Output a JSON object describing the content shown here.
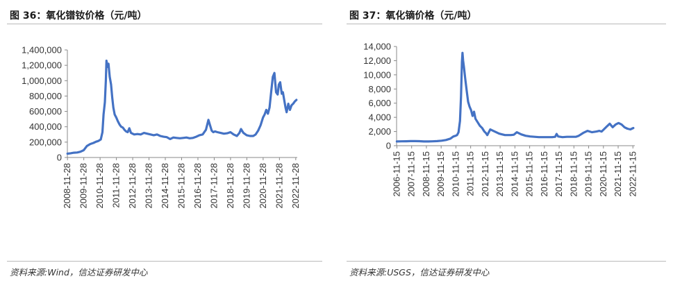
{
  "figures": [
    {
      "title": "图 36：氧化镨钕价格（元/吨）",
      "source": "资料来源:Wind，信达证券研发中心"
    },
    {
      "title": "图 37：氧化镝价格（元/吨）",
      "source": "资料来源:USGS，信达证券研发中心"
    }
  ],
  "chart_data": [
    {
      "type": "line",
      "title": "",
      "xlabel": "",
      "ylabel": "",
      "ylim": [
        0,
        1400000
      ],
      "yticks": [
        0,
        200000,
        400000,
        600000,
        800000,
        1000000,
        1200000,
        1400000
      ],
      "ytick_labels": [
        "0",
        "200,000",
        "400,000",
        "600,000",
        "800,000",
        "1,000,000",
        "1,200,000",
        "1,400,000"
      ],
      "xticks": [
        "2008-11-28",
        "2009-11-28",
        "2010-11-28",
        "2011-11-28",
        "2012-11-28",
        "2013-11-28",
        "2014-11-28",
        "2015-11-28",
        "2016-11-28",
        "2017-11-28",
        "2018-11-28",
        "2019-11-28",
        "2020-11-28",
        "2021-11-28",
        "2022-11-28"
      ],
      "xlim": [
        2008.9,
        2023.0
      ],
      "color": "#4472C4",
      "grid": false,
      "legend": "none",
      "series": [
        {
          "x": [
            2008.91,
            2009.1,
            2009.3,
            2009.5,
            2009.7,
            2009.9,
            2010.1,
            2010.3,
            2010.5,
            2010.65,
            2010.8,
            2010.95,
            2011.05,
            2011.12,
            2011.2,
            2011.26,
            2011.3,
            2011.36,
            2011.42,
            2011.5,
            2011.58,
            2011.65,
            2011.72,
            2011.8,
            2011.9,
            2012.0,
            2012.1,
            2012.2,
            2012.3,
            2012.4,
            2012.5,
            2012.6,
            2012.7,
            2012.8,
            2012.9,
            2013.0,
            2013.2,
            2013.4,
            2013.6,
            2013.8,
            2014.0,
            2014.2,
            2014.4,
            2014.6,
            2014.8,
            2015.0,
            2015.2,
            2015.4,
            2015.6,
            2015.8,
            2016.0,
            2016.2,
            2016.4,
            2016.6,
            2016.8,
            2017.0,
            2017.2,
            2017.4,
            2017.55,
            2017.65,
            2017.75,
            2017.85,
            2017.95,
            2018.1,
            2018.3,
            2018.5,
            2018.7,
            2018.9,
            2019.1,
            2019.3,
            2019.45,
            2019.55,
            2019.7,
            2019.9,
            2020.1,
            2020.3,
            2020.45,
            2020.6,
            2020.75,
            2020.9,
            2021.0,
            2021.1,
            2021.2,
            2021.3,
            2021.4,
            2021.5,
            2021.6,
            2021.7,
            2021.8,
            2021.87,
            2021.95,
            2022.05,
            2022.12,
            2022.2,
            2022.28,
            2022.35,
            2022.45,
            2022.55,
            2022.65,
            2022.75,
            2022.85,
            2022.95
          ],
          "y": [
            50000,
            55000,
            62000,
            65000,
            75000,
            95000,
            150000,
            175000,
            190000,
            205000,
            215000,
            235000,
            330000,
            560000,
            720000,
            1000000,
            1260000,
            1180000,
            1220000,
            1050000,
            950000,
            780000,
            650000,
            560000,
            520000,
            470000,
            430000,
            400000,
            390000,
            360000,
            340000,
            330000,
            380000,
            320000,
            310000,
            300000,
            305000,
            300000,
            320000,
            310000,
            300000,
            290000,
            300000,
            280000,
            270000,
            265000,
            240000,
            260000,
            255000,
            250000,
            255000,
            260000,
            250000,
            255000,
            270000,
            290000,
            300000,
            360000,
            490000,
            420000,
            350000,
            330000,
            340000,
            330000,
            320000,
            310000,
            315000,
            330000,
            300000,
            280000,
            320000,
            370000,
            320000,
            290000,
            280000,
            280000,
            300000,
            350000,
            420000,
            520000,
            560000,
            620000,
            570000,
            650000,
            850000,
            1050000,
            1100000,
            850000,
            820000,
            950000,
            980000,
            830000,
            850000,
            750000,
            650000,
            590000,
            700000,
            620000,
            680000,
            700000,
            730000,
            750000
          ]
        }
      ]
    },
    {
      "type": "line",
      "title": "",
      "xlabel": "",
      "ylabel": "",
      "ylim": [
        0,
        14000
      ],
      "yticks": [
        0,
        2000,
        4000,
        6000,
        8000,
        10000,
        12000,
        14000
      ],
      "ytick_labels": [
        "0",
        "2,000",
        "4,000",
        "6,000",
        "8,000",
        "10,000",
        "12,000",
        "14,000"
      ],
      "xticks": [
        "2006-11-15",
        "2007-11-15",
        "2008-11-15",
        "2009-11-15",
        "2010-11-15",
        "2011-11-15",
        "2012-11-15",
        "2013-11-15",
        "2014-11-15",
        "2015-11-15",
        "2016-11-15",
        "2017-11-15",
        "2018-11-15",
        "2019-11-15",
        "2020-11-15",
        "2021-11-15",
        "2022-11-15"
      ],
      "xlim": [
        2006.85,
        2023.0
      ],
      "color": "#4472C4",
      "grid": false,
      "legend": "none",
      "series": [
        {
          "x": [
            2006.87,
            2007.2,
            2007.5,
            2007.8,
            2008.1,
            2008.4,
            2008.7,
            2009.0,
            2009.3,
            2009.6,
            2009.9,
            2010.2,
            2010.5,
            2010.7,
            2010.85,
            2010.95,
            2011.05,
            2011.15,
            2011.22,
            2011.28,
            2011.32,
            2011.36,
            2011.42,
            2011.5,
            2011.6,
            2011.7,
            2011.8,
            2011.9,
            2012.0,
            2012.1,
            2012.2,
            2012.35,
            2012.5,
            2012.65,
            2012.8,
            2012.9,
            2013.0,
            2013.2,
            2013.4,
            2013.6,
            2013.8,
            2014.0,
            2014.2,
            2014.4,
            2014.6,
            2014.8,
            2015.0,
            2015.3,
            2015.6,
            2015.9,
            2016.2,
            2016.5,
            2016.8,
            2017.1,
            2017.4,
            2017.6,
            2017.7,
            2017.8,
            2018.1,
            2018.4,
            2018.7,
            2019.0,
            2019.2,
            2019.5,
            2019.8,
            2020.1,
            2020.4,
            2020.6,
            2020.75,
            2020.9,
            2021.1,
            2021.3,
            2021.5,
            2021.7,
            2021.9,
            2022.1,
            2022.3,
            2022.5,
            2022.7,
            2022.9
          ],
          "y": [
            600,
            620,
            630,
            650,
            650,
            640,
            600,
            600,
            620,
            650,
            700,
            800,
            1000,
            1300,
            1400,
            1500,
            1900,
            3500,
            7000,
            11800,
            13100,
            12000,
            11000,
            9500,
            7800,
            6200,
            5500,
            5000,
            4200,
            4800,
            3800,
            3300,
            2800,
            2500,
            2000,
            1800,
            1500,
            2300,
            2100,
            1900,
            1700,
            1600,
            1500,
            1500,
            1500,
            1550,
            1900,
            1600,
            1400,
            1300,
            1250,
            1200,
            1200,
            1200,
            1200,
            1250,
            1650,
            1300,
            1200,
            1250,
            1250,
            1250,
            1400,
            1800,
            2100,
            1900,
            2000,
            2100,
            2000,
            2300,
            2700,
            3100,
            2600,
            3000,
            3200,
            3000,
            2600,
            2400,
            2300,
            2500
          ]
        }
      ]
    }
  ]
}
